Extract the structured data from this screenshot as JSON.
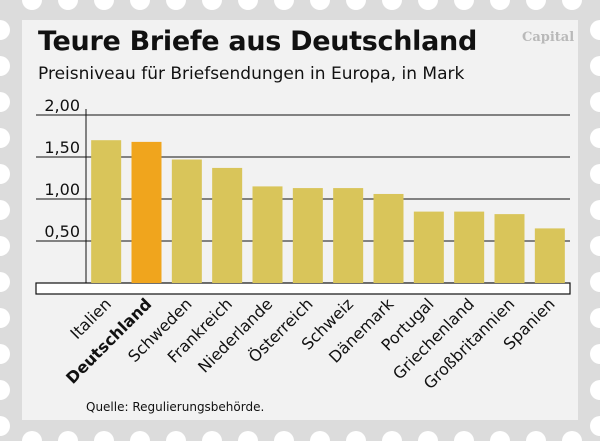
{
  "header": {
    "title": "Teure Briefe aus Deutschland",
    "subtitle": "Preisniveau für Briefsendungen in Europa, in Mark",
    "brand": "Capital"
  },
  "footer": {
    "source": "Quelle: Regulierungsbehörde."
  },
  "colors": {
    "bar": "#d9c55a",
    "highlight": "#f0a51d",
    "background": "#f2f2f2",
    "stamp_outer": "#d8d8d8"
  },
  "chart_data": {
    "type": "bar",
    "categories": [
      "Italien",
      "Deutschland",
      "Schweden",
      "Frankreich",
      "Niederlande",
      "Österreich",
      "Schweiz",
      "Dänemark",
      "Portugal",
      "Griechenland",
      "Großbritannien",
      "Spanien"
    ],
    "values": [
      1.7,
      1.68,
      1.47,
      1.37,
      1.15,
      1.13,
      1.13,
      1.06,
      0.85,
      0.85,
      0.82,
      0.65
    ],
    "highlight": "Deutschland",
    "yticks": [
      "0,50",
      "1,00",
      "1,50",
      "2,00"
    ],
    "ylim": [
      0,
      2.0
    ],
    "grid": true,
    "xlabel": "",
    "ylabel": ""
  }
}
